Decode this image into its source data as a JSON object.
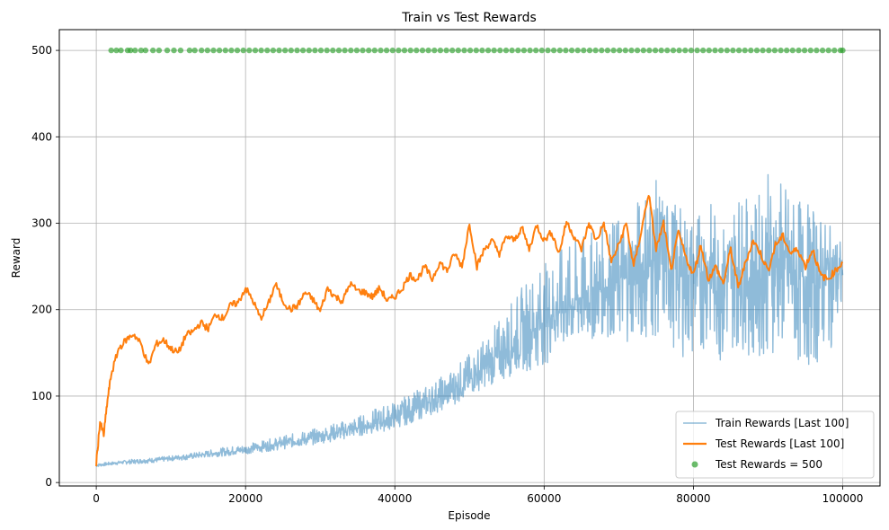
{
  "chart_data": {
    "type": "line",
    "title": "Train vs Test Rewards",
    "xlabel": "Episode",
    "ylabel": "Reward",
    "xlim": [
      -4950,
      105000
    ],
    "ylim": [
      -4,
      524
    ],
    "xticks": [
      0,
      20000,
      40000,
      60000,
      80000,
      100000
    ],
    "yticks": [
      0,
      100,
      200,
      300,
      400,
      500
    ],
    "grid": true,
    "legend_position": "lower-right",
    "series": [
      {
        "name": "Train Rewards [Last 100]",
        "kind": "line",
        "color": "#1f77b4",
        "x": [
          0,
          2000,
          4000,
          6000,
          8000,
          10000,
          12000,
          14000,
          16000,
          18000,
          20000,
          22000,
          24000,
          26000,
          28000,
          30000,
          32000,
          34000,
          36000,
          38000,
          40000,
          42000,
          44000,
          46000,
          48000,
          50000,
          52000,
          54000,
          56000,
          58000,
          60000,
          62000,
          64000,
          66000,
          68000,
          70000,
          72000,
          74000,
          76000,
          78000,
          80000,
          82000,
          84000,
          86000,
          88000,
          90000,
          92000,
          94000,
          96000,
          98000,
          100000
        ],
        "values": [
          20,
          22,
          24,
          25,
          26,
          28,
          30,
          32,
          34,
          36,
          38,
          41,
          44,
          47,
          50,
          53,
          57,
          61,
          65,
          70,
          75,
          82,
          90,
          98,
          108,
          118,
          132,
          145,
          160,
          172,
          188,
          200,
          210,
          218,
          225,
          232,
          240,
          250,
          255,
          245,
          240,
          248,
          235,
          250,
          230,
          255,
          245,
          240,
          235,
          245,
          240
        ],
        "upper": [
          22,
          24,
          26,
          28,
          29,
          31,
          33,
          36,
          39,
          42,
          45,
          48,
          52,
          56,
          60,
          64,
          69,
          74,
          80,
          88,
          95,
          102,
          112,
          122,
          135,
          150,
          168,
          190,
          215,
          240,
          255,
          270,
          280,
          290,
          300,
          310,
          320,
          360,
          340,
          320,
          310,
          330,
          300,
          340,
          320,
          360,
          350,
          330,
          320,
          300,
          280
        ],
        "lower": [
          18,
          20,
          21,
          22,
          23,
          25,
          26,
          28,
          30,
          31,
          33,
          35,
          37,
          40,
          42,
          45,
          48,
          51,
          55,
          58,
          62,
          68,
          75,
          82,
          90,
          100,
          110,
          115,
          125,
          130,
          135,
          150,
          150,
          160,
          170,
          160,
          165,
          160,
          170,
          150,
          135,
          160,
          130,
          160,
          140,
          150,
          150,
          135,
          130,
          150,
          175
        ]
      },
      {
        "name": "Test Rewards [Last 100]",
        "kind": "line",
        "color": "#ff7f0e",
        "x": [
          0,
          500,
          1000,
          1500,
          2000,
          3000,
          4000,
          5000,
          6000,
          7000,
          8000,
          9000,
          10000,
          11000,
          12000,
          13000,
          14000,
          15000,
          16000,
          17000,
          18000,
          19000,
          20000,
          21000,
          22000,
          23000,
          24000,
          25000,
          26000,
          27000,
          28000,
          29000,
          30000,
          31000,
          32000,
          33000,
          34000,
          35000,
          36000,
          37000,
          38000,
          39000,
          40000,
          41000,
          42000,
          43000,
          44000,
          45000,
          46000,
          47000,
          48000,
          49000,
          50000,
          51000,
          52000,
          53000,
          54000,
          55000,
          56000,
          57000,
          58000,
          59000,
          60000,
          61000,
          62000,
          63000,
          64000,
          65000,
          66000,
          67000,
          68000,
          69000,
          70000,
          71000,
          72000,
          73000,
          74000,
          75000,
          76000,
          77000,
          78000,
          79000,
          80000,
          81000,
          82000,
          83000,
          84000,
          85000,
          86000,
          87000,
          88000,
          89000,
          90000,
          91000,
          92000,
          93000,
          94000,
          95000,
          96000,
          97000,
          98000,
          99000,
          100000
        ],
        "values": [
          22,
          70,
          55,
          95,
          125,
          155,
          165,
          172,
          160,
          135,
          160,
          165,
          155,
          150,
          170,
          175,
          185,
          178,
          195,
          190,
          205,
          208,
          225,
          210,
          190,
          205,
          230,
          210,
          200,
          205,
          220,
          212,
          198,
          225,
          215,
          210,
          230,
          222,
          220,
          215,
          225,
          210,
          215,
          225,
          240,
          235,
          250,
          235,
          255,
          245,
          265,
          250,
          300,
          250,
          270,
          280,
          265,
          285,
          280,
          295,
          270,
          298,
          280,
          290,
          265,
          302,
          285,
          270,
          300,
          280,
          300,
          255,
          275,
          300,
          250,
          290,
          335,
          270,
          300,
          245,
          290,
          260,
          240,
          275,
          235,
          250,
          230,
          270,
          225,
          255,
          280,
          265,
          245,
          275,
          285,
          265,
          270,
          250,
          270,
          240,
          235,
          245,
          255
        ]
      },
      {
        "name": "Test Rewards = 500",
        "kind": "scatter",
        "color": "#2ca02c",
        "x": [
          2000,
          2700,
          3300,
          4200,
          4600,
          5200,
          6000,
          6600,
          7600,
          8400,
          9500,
          10400,
          11300,
          12500,
          13200,
          14100,
          14900,
          15700,
          16500,
          17300,
          18100,
          18900,
          19700,
          20500,
          21300,
          22100,
          22900,
          23700,
          24500,
          25300,
          26100,
          26900,
          27700,
          28500,
          29300,
          30100,
          30900,
          31700,
          32500,
          33300,
          34100,
          34900,
          35700,
          36500,
          37300,
          38100,
          38900,
          39700,
          40500,
          41300,
          42100,
          42900,
          43700,
          44500,
          45300,
          46100,
          46900,
          47700,
          48500,
          49300,
          50100,
          50900,
          51700,
          52500,
          53300,
          54100,
          54900,
          55700,
          56500,
          57300,
          58100,
          58900,
          59700,
          60500,
          61300,
          62100,
          62900,
          63700,
          64500,
          65300,
          66100,
          66900,
          67700,
          68500,
          69300,
          70100,
          70900,
          71700,
          72500,
          73300,
          74100,
          74900,
          75700,
          76500,
          77300,
          78100,
          78900,
          79700,
          80500,
          81300,
          82100,
          82900,
          83700,
          84500,
          85300,
          86100,
          86900,
          87700,
          88500,
          89300,
          90100,
          90900,
          91700,
          92500,
          93300,
          94100,
          94900,
          95700,
          96500,
          97300,
          98100,
          98900,
          99700,
          100000
        ],
        "values": 500
      }
    ]
  }
}
